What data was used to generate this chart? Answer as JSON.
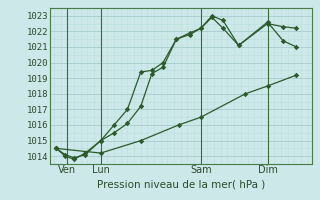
{
  "background_color": "#cde8e8",
  "grid_major_color": "#a8cccc",
  "grid_minor_color": "#bcdede",
  "line_color": "#2d5a2d",
  "xlabel": "Pression niveau de la mer( hPa )",
  "ylim": [
    1013.5,
    1023.5
  ],
  "yticks": [
    1014,
    1015,
    1016,
    1017,
    1018,
    1019,
    1020,
    1021,
    1022,
    1023
  ],
  "xtick_labels": [
    "Ven",
    "Lun",
    "Sam",
    "Dim"
  ],
  "xtick_positions": [
    0.5,
    2.0,
    6.5,
    9.5
  ],
  "vline_positions": [
    0.5,
    2.0,
    6.5,
    9.5
  ],
  "xlim": [
    -0.3,
    11.5
  ],
  "line1_x": [
    0.0,
    0.4,
    0.8,
    1.3,
    2.0,
    2.6,
    3.2,
    3.8,
    4.3,
    4.8,
    5.4,
    6.0,
    6.5,
    7.0,
    7.5,
    8.2,
    9.5,
    10.2,
    10.8
  ],
  "line1_y": [
    1014.5,
    1014.1,
    1013.9,
    1014.1,
    1015.0,
    1016.0,
    1017.0,
    1019.4,
    1019.5,
    1020.0,
    1021.5,
    1021.8,
    1022.2,
    1022.9,
    1022.2,
    1021.1,
    1022.5,
    1022.3,
    1022.2
  ],
  "line2_x": [
    0.0,
    0.4,
    0.8,
    1.3,
    2.0,
    2.6,
    3.2,
    3.8,
    4.3,
    4.8,
    5.4,
    6.0,
    6.5,
    7.0,
    7.5,
    8.2,
    9.5,
    10.2,
    10.8
  ],
  "line2_y": [
    1014.5,
    1014.0,
    1013.8,
    1014.2,
    1015.0,
    1015.5,
    1016.1,
    1017.2,
    1019.3,
    1019.7,
    1021.5,
    1021.9,
    1022.2,
    1023.0,
    1022.7,
    1021.1,
    1022.6,
    1021.4,
    1021.0
  ],
  "line3_x": [
    0.0,
    2.0,
    3.8,
    5.5,
    6.5,
    8.5,
    9.5,
    10.8
  ],
  "line3_y": [
    1014.5,
    1014.2,
    1015.0,
    1016.0,
    1016.5,
    1018.0,
    1018.5,
    1019.2
  ]
}
